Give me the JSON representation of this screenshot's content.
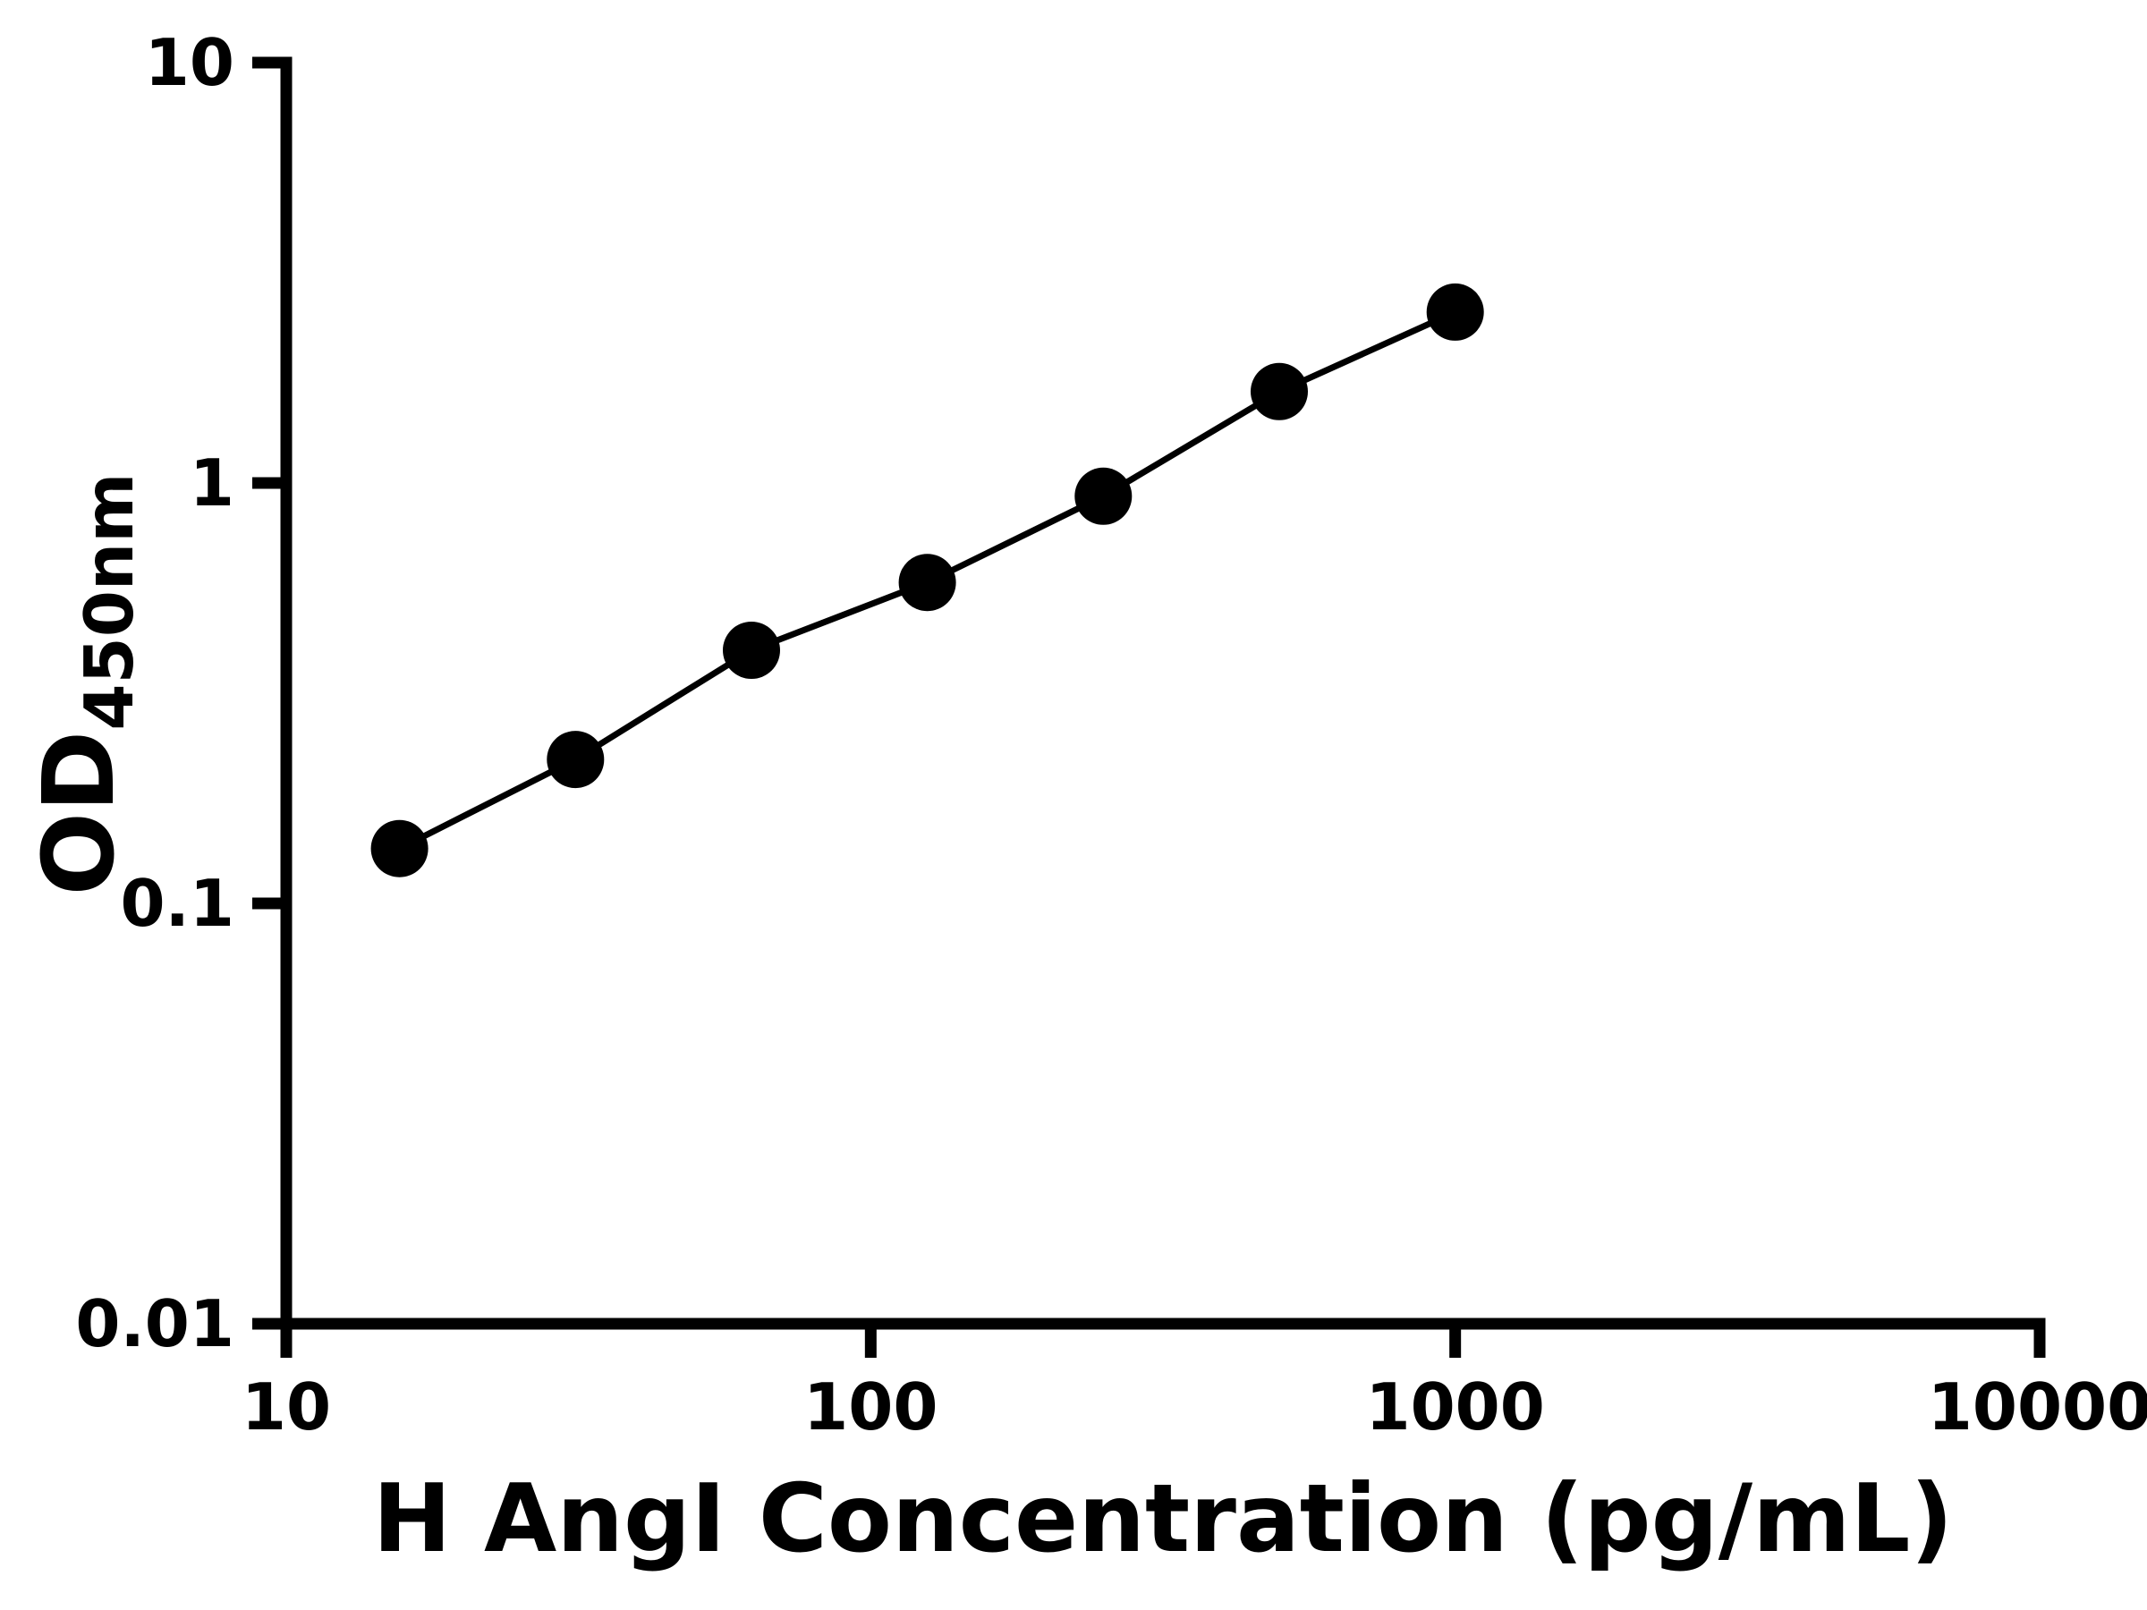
{
  "page": {
    "background": "#ffffff"
  },
  "chart_data": {
    "type": "scatter",
    "title": "",
    "xlabel": "H AngI Concentration (pg/mL)",
    "ylabel_main": "OD",
    "ylabel_sub": "450nm",
    "x_scale": "log",
    "y_scale": "log",
    "xlim": [
      10,
      10000
    ],
    "ylim": [
      0.01,
      10
    ],
    "x_ticks": [
      10,
      100,
      1000,
      10000
    ],
    "x_tick_labels": [
      "10",
      "100",
      "1000",
      "10000"
    ],
    "y_ticks": [
      0.01,
      0.1,
      1,
      10
    ],
    "y_tick_labels": [
      "0.01",
      "0.1",
      "1",
      "10"
    ],
    "grid": false,
    "legend": false,
    "points": [
      {
        "x": 15.625,
        "y": 0.135
      },
      {
        "x": 31.25,
        "y": 0.22
      },
      {
        "x": 62.5,
        "y": 0.4
      },
      {
        "x": 125,
        "y": 0.58
      },
      {
        "x": 250,
        "y": 0.93
      },
      {
        "x": 500,
        "y": 1.65
      },
      {
        "x": 1000,
        "y": 2.55
      }
    ],
    "line_color": "#000000",
    "marker_color": "#000000",
    "axis_color": "#000000",
    "marker_radius": 32,
    "line_width": 7,
    "axis_width": 13,
    "tick_length": 38
  }
}
